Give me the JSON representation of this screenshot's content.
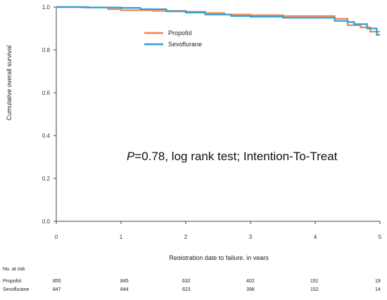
{
  "chart_data": {
    "type": "line",
    "title": "",
    "xlabel": "Registration date to failure, in years",
    "ylabel": "Cumulative overall survival",
    "xlim": [
      0,
      5
    ],
    "ylim": [
      0.0,
      1.0
    ],
    "x_ticks": [
      "0",
      "1",
      "2",
      "3",
      "4",
      "5"
    ],
    "y_ticks": [
      "0.0",
      "0.2",
      "0.4",
      "0.6",
      "0.8",
      "1.0"
    ],
    "grid": false,
    "legend_position": "top-center",
    "series": [
      {
        "name": "Propofol",
        "color": "#f08050",
        "points": [
          [
            0,
            1.0
          ],
          [
            0.4,
            0.998
          ],
          [
            0.8,
            0.99
          ],
          [
            1.0,
            0.985
          ],
          [
            1.5,
            0.982
          ],
          [
            2.0,
            0.978
          ],
          [
            2.3,
            0.972
          ],
          [
            2.6,
            0.965
          ],
          [
            3.0,
            0.962
          ],
          [
            3.5,
            0.958
          ],
          [
            4.0,
            0.958
          ],
          [
            4.3,
            0.945
          ],
          [
            4.5,
            0.915
          ],
          [
            4.7,
            0.905
          ],
          [
            4.85,
            0.885
          ],
          [
            5.0,
            0.885
          ]
        ]
      },
      {
        "name": "Sevoflurane",
        "color": "#2aa0d4",
        "points": [
          [
            0,
            1.0
          ],
          [
            0.5,
            0.998
          ],
          [
            1.0,
            0.996
          ],
          [
            1.3,
            0.99
          ],
          [
            1.7,
            0.98
          ],
          [
            2.0,
            0.974
          ],
          [
            2.3,
            0.965
          ],
          [
            2.7,
            0.958
          ],
          [
            3.0,
            0.955
          ],
          [
            3.5,
            0.95
          ],
          [
            4.0,
            0.95
          ],
          [
            4.3,
            0.935
          ],
          [
            4.5,
            0.93
          ],
          [
            4.6,
            0.92
          ],
          [
            4.8,
            0.9
          ],
          [
            4.95,
            0.87
          ],
          [
            5.0,
            0.87
          ]
        ]
      }
    ]
  },
  "annotation": {
    "p_symbol": "P",
    "rest": "=0.78, log rank test; Intention-To-Treat"
  },
  "risk_table": {
    "title": "No. at risk",
    "rows": [
      {
        "label": "Propofol",
        "values": [
          "855",
          "845",
          "632",
          "402",
          "151",
          "19"
        ]
      },
      {
        "label": "Sevoflurane",
        "values": [
          "847",
          "844",
          "623",
          "398",
          "152",
          "14"
        ]
      }
    ]
  }
}
